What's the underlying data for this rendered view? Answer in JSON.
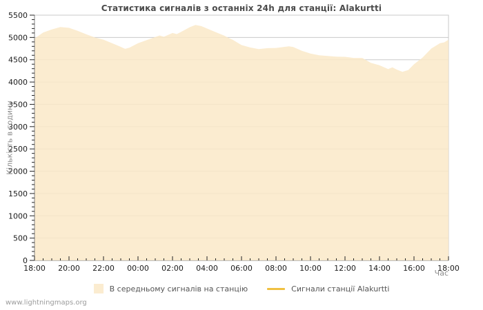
{
  "page": {
    "background": "#ffffff"
  },
  "watermark": "www.lightningmaps.org",
  "chart_data": {
    "type": "area",
    "title": "Статистика сигналів з останніх 24h для станції: Alakurtti",
    "xlabel": "Час",
    "ylabel": "Кількість в годину",
    "ylim": [
      0,
      5500
    ],
    "ytick_step": 500,
    "yminor_step": 100,
    "ytick_labels": [
      "0",
      "500",
      "1000",
      "1500",
      "2000",
      "2500",
      "3000",
      "3500",
      "4000",
      "4500",
      "5000",
      "5500"
    ],
    "x_hours_span": 24,
    "xtick_every_hours": 2,
    "xminor_every_hours": 0.5,
    "xtick_labels": [
      "18:00",
      "20:00",
      "22:00",
      "00:00",
      "02:00",
      "04:00",
      "06:00",
      "08:00",
      "10:00",
      "12:00",
      "14:00",
      "16:00",
      "18:00"
    ],
    "grid": "horizontal",
    "grid_color": "#c9c9c9",
    "axis_color": "#808080",
    "tick_color": "#222222",
    "legend_position": "bottom",
    "series": [
      {
        "name": "В середньому сигналів на станцію",
        "type": "area",
        "fill": "#fbecd0",
        "fill_rgba": "rgba(250,233,200,0.85)",
        "points": [
          [
            0,
            4975
          ],
          [
            0.5,
            5110
          ],
          [
            1,
            5180
          ],
          [
            1.5,
            5235
          ],
          [
            2,
            5215
          ],
          [
            2.5,
            5150
          ],
          [
            3,
            5070
          ],
          [
            3.5,
            5000
          ],
          [
            4,
            4950
          ],
          [
            4.5,
            4870
          ],
          [
            5,
            4790
          ],
          [
            5.25,
            4745
          ],
          [
            5.5,
            4770
          ],
          [
            6,
            4870
          ],
          [
            6.5,
            4940
          ],
          [
            7,
            5010
          ],
          [
            7.25,
            5045
          ],
          [
            7.5,
            5015
          ],
          [
            8,
            5100
          ],
          [
            8.25,
            5075
          ],
          [
            8.5,
            5125
          ],
          [
            9,
            5230
          ],
          [
            9.33,
            5280
          ],
          [
            9.67,
            5255
          ],
          [
            10,
            5200
          ],
          [
            10.5,
            5120
          ],
          [
            11,
            5040
          ],
          [
            11.25,
            4990
          ],
          [
            11.5,
            4945
          ],
          [
            12,
            4830
          ],
          [
            12.5,
            4775
          ],
          [
            13,
            4740
          ],
          [
            13.5,
            4760
          ],
          [
            14,
            4765
          ],
          [
            14.5,
            4790
          ],
          [
            14.75,
            4800
          ],
          [
            15,
            4785
          ],
          [
            15.5,
            4700
          ],
          [
            16,
            4640
          ],
          [
            16.5,
            4600
          ],
          [
            17,
            4585
          ],
          [
            17.5,
            4570
          ],
          [
            18,
            4565
          ],
          [
            18.5,
            4540
          ],
          [
            19,
            4540
          ],
          [
            19.5,
            4430
          ],
          [
            20,
            4375
          ],
          [
            20.5,
            4290
          ],
          [
            20.75,
            4330
          ],
          [
            21,
            4280
          ],
          [
            21.33,
            4230
          ],
          [
            21.67,
            4270
          ],
          [
            22,
            4400
          ],
          [
            22.5,
            4550
          ],
          [
            23,
            4750
          ],
          [
            23.5,
            4870
          ],
          [
            23.75,
            4890
          ],
          [
            24,
            4950
          ]
        ]
      },
      {
        "name": "Сигнали станції Alakurtti",
        "type": "line",
        "color": "#f0c040",
        "points": []
      }
    ]
  }
}
